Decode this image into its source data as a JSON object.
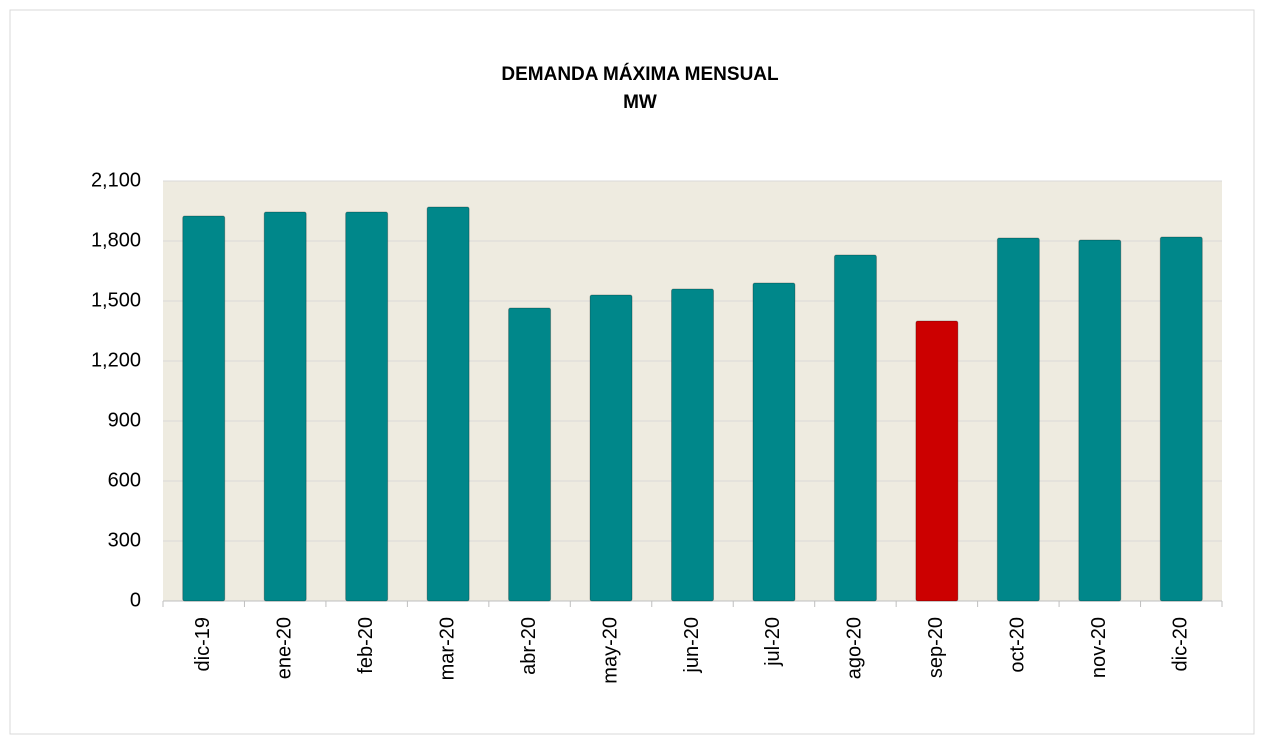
{
  "chart_data": {
    "type": "bar",
    "title": "DEMANDA  MÁXIMA  MENSUAL",
    "subtitle": "MW",
    "categories": [
      "dic-19",
      "ene-20",
      "feb-20",
      "mar-20",
      "abr-20",
      "may-20",
      "jun-20",
      "jul-20",
      "ago-20",
      "sep-20",
      "oct-20",
      "nov-20",
      "dic-20"
    ],
    "values": [
      1925,
      1945,
      1945,
      1970,
      1465,
      1530,
      1560,
      1590,
      1730,
      1400,
      1815,
      1805,
      1820
    ],
    "colors": [
      "#00878a",
      "#00878a",
      "#00878a",
      "#00878a",
      "#00878a",
      "#00878a",
      "#00878a",
      "#00878a",
      "#00878a",
      "#cc0000",
      "#00878a",
      "#00878a",
      "#00878a"
    ],
    "ylim": [
      0,
      2100
    ],
    "yticks": [
      0,
      300,
      600,
      900,
      {
        "value": 1200,
        "label": "1,200"
      },
      {
        "value": 1500,
        "label": "1,500"
      },
      {
        "value": 1800,
        "label": "1,800"
      },
      {
        "value": 2100,
        "label": "2,100"
      }
    ],
    "grid": true
  }
}
